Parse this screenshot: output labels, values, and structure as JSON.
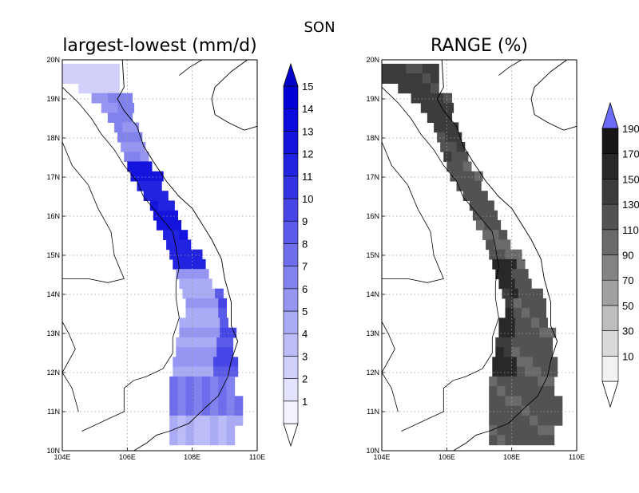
{
  "figure": {
    "title": "SON"
  },
  "panels": [
    {
      "id": "left",
      "title": "largest-lowest (mm/d)",
      "scheme": "blue",
      "lat_labels": [
        "10N",
        "11N",
        "12N",
        "13N",
        "14N",
        "15N",
        "16N",
        "17N",
        "18N",
        "19N",
        "20N"
      ],
      "lon_labels": [
        "104E",
        "106E",
        "108E",
        "110E"
      ],
      "colorbar": {
        "labels": [
          "1",
          "2",
          "3",
          "4",
          "5",
          "6",
          "7",
          "8",
          "9",
          "10",
          "11",
          "12",
          "13",
          "14",
          "15"
        ],
        "colors": [
          "#f3f3ff",
          "#e3e3fd",
          "#d0d0fb",
          "#bcbcf8",
          "#aaaaf5",
          "#9696f2",
          "#8282ef",
          "#6e6eec",
          "#5a5ae9",
          "#4646e6",
          "#3232e3",
          "#2222e1",
          "#1414de",
          "#0a0adc",
          "#0000d6"
        ],
        "max_arrow": "#0000c8"
      }
    },
    {
      "id": "right",
      "title": "RANGE (%)",
      "scheme": "gray",
      "lat_labels": [
        "10N",
        "11N",
        "12N",
        "13N",
        "14N",
        "15N",
        "16N",
        "17N",
        "18N",
        "19N",
        "20N"
      ],
      "lon_labels": [
        "104E",
        "106E",
        "108E",
        "110E"
      ],
      "colorbar": {
        "labels": [
          "10",
          "30",
          "50",
          "70",
          "90",
          "110",
          "130",
          "150",
          "170",
          "190"
        ],
        "colors": [
          "#f2f2f2",
          "#d9d9d9",
          "#bdbdbd",
          "#a0a0a0",
          "#848484",
          "#6a6a6a",
          "#525252",
          "#3c3c3c",
          "#282828",
          "#161616"
        ],
        "max_arrow": "#6b6bf5"
      }
    }
  ]
}
